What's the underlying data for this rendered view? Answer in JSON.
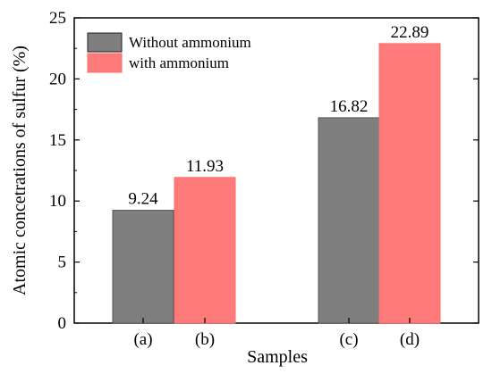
{
  "chart_data": {
    "type": "bar",
    "categories": [
      "(a)",
      "(b)",
      "(c)",
      "(d)"
    ],
    "series": [
      {
        "name": "Without ammonium",
        "color": "#7f7f7f",
        "points": [
          {
            "category": "(a)",
            "value": 9.24
          },
          {
            "category": "(c)",
            "value": 16.82
          }
        ]
      },
      {
        "name": "with ammonium",
        "color": "#ff7b7b",
        "points": [
          {
            "category": "(b)",
            "value": 11.93
          },
          {
            "category": "(d)",
            "value": 22.89
          }
        ]
      }
    ],
    "data_labels": [
      "9.24",
      "11.93",
      "16.82",
      "22.89"
    ],
    "title": "",
    "xlabel": "Samples",
    "ylabel": "Atomic concetrations of sulfur (%)",
    "ylim": [
      0,
      25
    ],
    "yticks": [
      "0",
      "5",
      "10",
      "15",
      "20",
      "25"
    ],
    "legend_position": "top-left",
    "grid": false
  }
}
